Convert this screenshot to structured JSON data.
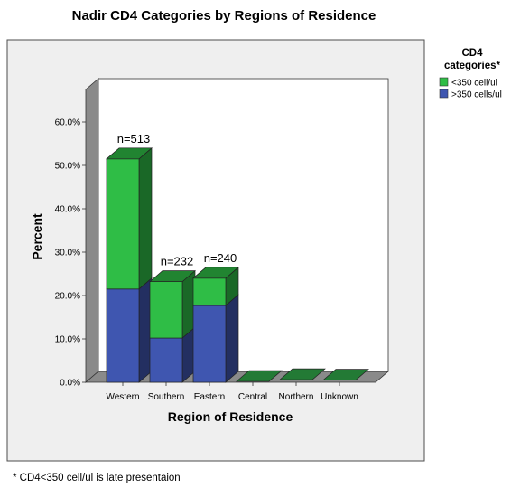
{
  "chart_data": {
    "type": "bar",
    "stacked": true,
    "three_d": true,
    "title": "Nadir CD4 Categories by Regions of Residence",
    "xlabel": "Region of Residence",
    "ylabel": "Percent",
    "categories": [
      "Western",
      "Southern",
      "Eastern",
      "Central",
      "Northern",
      "Unknown"
    ],
    "series": [
      {
        "name": ">350 cells/ul",
        "color": "#3f56b0",
        "values": [
          21.5,
          10.2,
          17.7,
          0.2,
          0.2,
          0.2
        ]
      },
      {
        "name": "<350  cell/ul",
        "color": "#2fbd46",
        "values": [
          30.0,
          13.0,
          6.3,
          0.0,
          0.4,
          0.3
        ]
      }
    ],
    "ylim": [
      0,
      60
    ],
    "yticks": [
      "0.0%",
      "10.0%",
      "20.0%",
      "30.0%",
      "40.0%",
      "50.0%",
      "60.0%"
    ],
    "annotations": [
      {
        "category": "Western",
        "text": "n=513"
      },
      {
        "category": "Southern",
        "text": "n=232"
      },
      {
        "category": "Eastern",
        "text": "n=240"
      }
    ],
    "legend": {
      "title_line1": "CD4",
      "title_line2": "categories*",
      "position": "right"
    },
    "footnote": "* CD4<350 cell/ul is late presentaion"
  }
}
